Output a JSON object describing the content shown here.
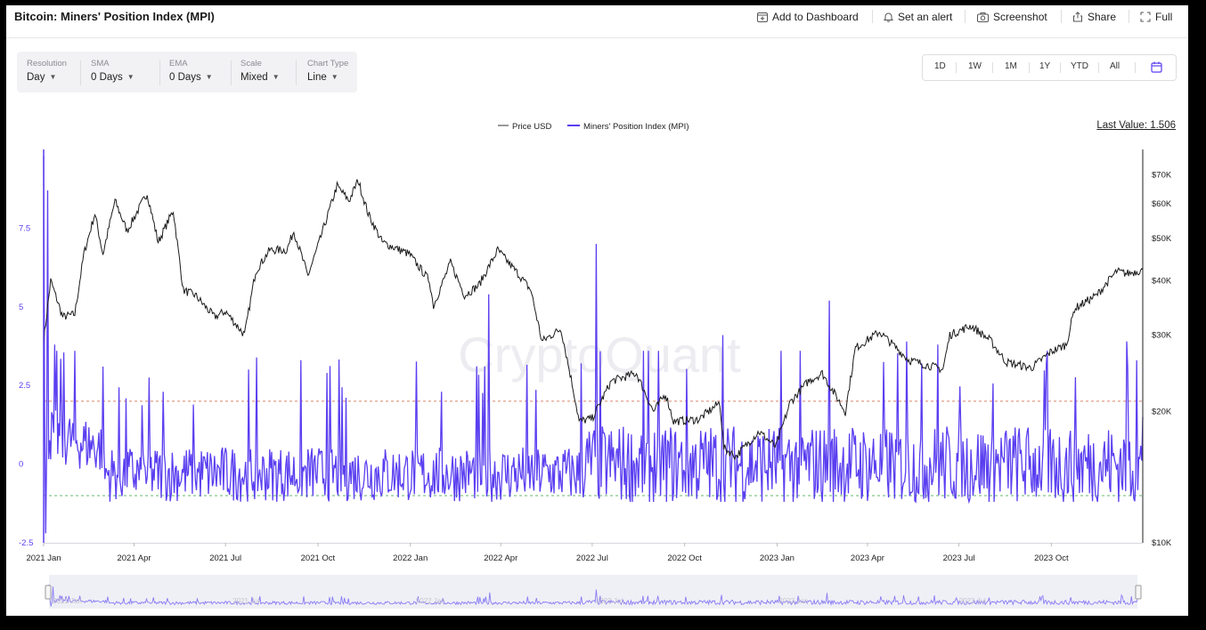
{
  "page_title": "Bitcoin: Miners' Position Index (MPI)",
  "toolbar": {
    "add_to_dashboard": "Add to Dashboard",
    "set_alert": "Set an alert",
    "screenshot": "Screenshot",
    "share": "Share",
    "full": "Full"
  },
  "controls": [
    {
      "label": "Resolution",
      "value": "Day"
    },
    {
      "label": "SMA",
      "value": "0 Days"
    },
    {
      "label": "EMA",
      "value": "0 Days"
    },
    {
      "label": "Scale",
      "value": "Mixed"
    },
    {
      "label": "Chart Type",
      "value": "Line"
    }
  ],
  "ranges": [
    "1D",
    "1W",
    "1M",
    "1Y",
    "YTD",
    "All"
  ],
  "icons": {
    "calendar": "calendar-icon",
    "dashboard": "add-dashboard-icon",
    "alert": "bell-icon",
    "screenshot": "camera-icon",
    "share": "share-icon",
    "full": "fullscreen-icon"
  },
  "last_value": "Last Value: 1.506",
  "watermark": "CryptoQuant",
  "colors": {
    "mpi": "#5a3ff0",
    "price": "#1a1a1a",
    "upper_threshold": "#d9836b",
    "lower_threshold": "#63b96a",
    "accent": "#5a3ff0"
  },
  "chart_data": {
    "type": "line",
    "x_range": [
      "2021-01-01",
      "2023-12-31"
    ],
    "x_ticks": [
      "2021 Jan",
      "2021 Apr",
      "2021 Jul",
      "2021 Oct",
      "2022 Jan",
      "2022 Apr",
      "2022 Jul",
      "2022 Oct",
      "2023 Jan",
      "2023 Apr",
      "2023 Jul",
      "2023 Oct"
    ],
    "left_axis": {
      "ticks": [
        -2.5,
        0,
        2.5,
        5,
        7.5
      ],
      "tick_labels": [
        "-2.5",
        "0",
        "2.5",
        "5",
        "7.5"
      ],
      "range": [
        -2.5,
        10
      ]
    },
    "right_axis": {
      "scale": "log",
      "ticks": [
        10000,
        20000,
        30000,
        40000,
        50000,
        60000,
        70000
      ],
      "tick_labels": [
        "$10K",
        "$20K",
        "$30K",
        "$40K",
        "$50K",
        "$60K",
        "$70K"
      ],
      "range": [
        10000,
        80000
      ]
    },
    "thresholds": {
      "upper": 2,
      "lower": -1
    },
    "series": [
      {
        "name": "Price USD",
        "axis": "right",
        "points": [
          [
            "2021-01-01",
            29000
          ],
          [
            "2021-01-08",
            40000
          ],
          [
            "2021-01-20",
            33000
          ],
          [
            "2021-02-01",
            33500
          ],
          [
            "2021-02-10",
            46000
          ],
          [
            "2021-02-21",
            57000
          ],
          [
            "2021-03-01",
            46000
          ],
          [
            "2021-03-13",
            61000
          ],
          [
            "2021-03-25",
            52000
          ],
          [
            "2021-04-14",
            63500
          ],
          [
            "2021-04-25",
            49000
          ],
          [
            "2021-05-10",
            58000
          ],
          [
            "2021-05-20",
            38000
          ],
          [
            "2021-06-01",
            37000
          ],
          [
            "2021-06-20",
            33000
          ],
          [
            "2021-07-01",
            34000
          ],
          [
            "2021-07-20",
            30000
          ],
          [
            "2021-07-31",
            42000
          ],
          [
            "2021-08-14",
            47000
          ],
          [
            "2021-08-31",
            47000
          ],
          [
            "2021-09-07",
            52000
          ],
          [
            "2021-09-21",
            41000
          ],
          [
            "2021-10-01",
            48000
          ],
          [
            "2021-10-20",
            66000
          ],
          [
            "2021-11-01",
            61000
          ],
          [
            "2021-11-10",
            68000
          ],
          [
            "2021-11-20",
            57000
          ],
          [
            "2021-12-04",
            49000
          ],
          [
            "2021-12-31",
            46000
          ],
          [
            "2022-01-20",
            40000
          ],
          [
            "2022-01-24",
            35000
          ],
          [
            "2022-02-10",
            44000
          ],
          [
            "2022-02-24",
            37000
          ],
          [
            "2022-03-10",
            39000
          ],
          [
            "2022-03-29",
            47000
          ],
          [
            "2022-04-20",
            41000
          ],
          [
            "2022-05-01",
            38000
          ],
          [
            "2022-05-12",
            29000
          ],
          [
            "2022-05-31",
            31000
          ],
          [
            "2022-06-13",
            22000
          ],
          [
            "2022-06-18",
            19000
          ],
          [
            "2022-07-01",
            19300
          ],
          [
            "2022-07-20",
            23500
          ],
          [
            "2022-08-14",
            24500
          ],
          [
            "2022-08-31",
            20000
          ],
          [
            "2022-09-12",
            22000
          ],
          [
            "2022-09-20",
            19000
          ],
          [
            "2022-10-15",
            19200
          ],
          [
            "2022-11-05",
            21000
          ],
          [
            "2022-11-09",
            16500
          ],
          [
            "2022-11-21",
            15800
          ],
          [
            "2022-12-14",
            18000
          ],
          [
            "2022-12-31",
            16600
          ],
          [
            "2023-01-14",
            21000
          ],
          [
            "2023-02-01",
            23500
          ],
          [
            "2023-02-15",
            24500
          ],
          [
            "2023-03-10",
            20000
          ],
          [
            "2023-03-20",
            28000
          ],
          [
            "2023-04-13",
            30500
          ],
          [
            "2023-05-12",
            26300
          ],
          [
            "2023-06-15",
            25000
          ],
          [
            "2023-06-22",
            30000
          ],
          [
            "2023-07-13",
            31500
          ],
          [
            "2023-08-01",
            29200
          ],
          [
            "2023-08-17",
            26000
          ],
          [
            "2023-09-11",
            25200
          ],
          [
            "2023-10-01",
            27500
          ],
          [
            "2023-10-16",
            28500
          ],
          [
            "2023-10-24",
            34500
          ],
          [
            "2023-11-15",
            37000
          ],
          [
            "2023-12-05",
            42000
          ],
          [
            "2023-12-15",
            41500
          ],
          [
            "2023-12-31",
            42300
          ]
        ]
      },
      {
        "name": "Miners' Position Index (MPI)",
        "axis": "left",
        "peaks": [
          [
            "2021-01-01",
            9.8
          ],
          [
            "2021-01-03",
            -2.2
          ],
          [
            "2021-01-05",
            8.7
          ],
          [
            "2021-01-12",
            3.8
          ],
          [
            "2021-03-01",
            3.1
          ],
          [
            "2021-04-30",
            2.3
          ],
          [
            "2021-10-10",
            2.9
          ],
          [
            "2022-03-20",
            5.4
          ],
          [
            "2022-06-20",
            3.2
          ],
          [
            "2022-07-05",
            7.0
          ],
          [
            "2022-11-08",
            4.1
          ],
          [
            "2023-02-22",
            5.2
          ],
          [
            "2023-05-10",
            3.9
          ],
          [
            "2023-06-10",
            3.8
          ],
          [
            "2023-12-15",
            3.9
          ],
          [
            "2023-12-25",
            3.3
          ],
          [
            "2023-12-31",
            1.5
          ]
        ],
        "typical_range": [
          -1.2,
          2.0
        ]
      }
    ]
  }
}
